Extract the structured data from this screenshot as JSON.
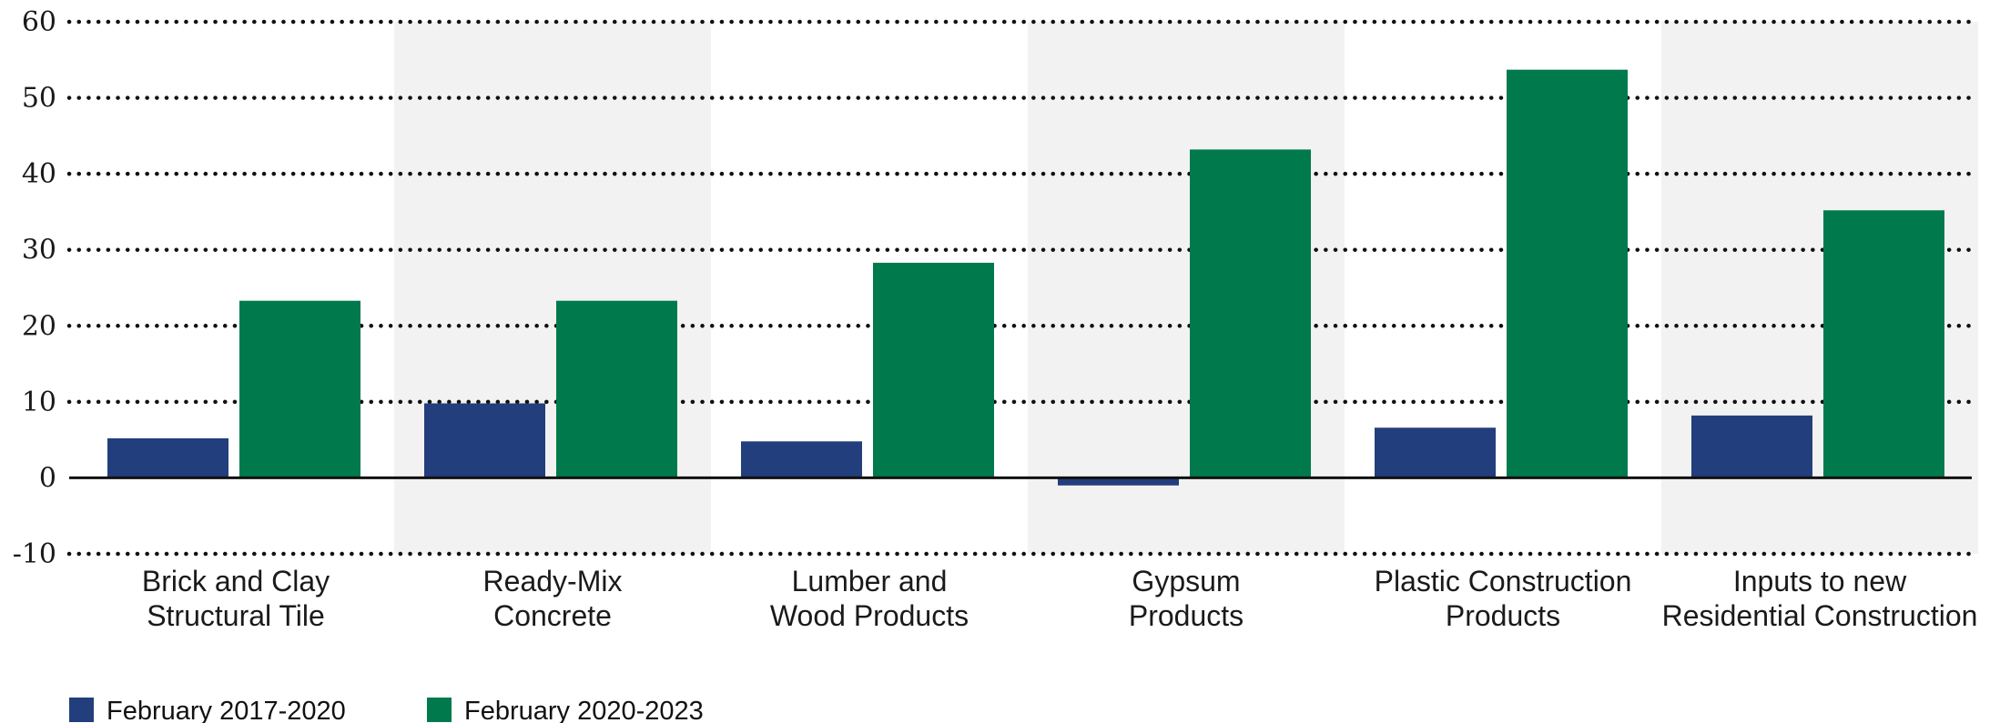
{
  "chart_data": {
    "type": "bar",
    "title": "",
    "xlabel": "",
    "ylabel": "",
    "ylim": [
      -10,
      60
    ],
    "yticks": [
      60,
      50,
      40,
      30,
      20,
      10,
      0,
      -10
    ],
    "grid": "dotted horizontal",
    "alternating_category_shading": true,
    "legend_position": "bottom-left",
    "categories": [
      [
        "Brick and Clay",
        "Structural Tile"
      ],
      [
        "Ready-Mix",
        "Concrete"
      ],
      [
        "Lumber and",
        "Wood Products"
      ],
      [
        "Gypsum",
        "Products"
      ],
      [
        "Plastic Construction",
        "Products"
      ],
      [
        "Inputs to new",
        "Residential Construction"
      ]
    ],
    "series": [
      {
        "name": "February 2017-2020",
        "color": "#233e7c",
        "values": [
          5.2,
          9.8,
          4.8,
          -1.0,
          6.6,
          8.2
        ]
      },
      {
        "name": "February 2020-2023",
        "color": "#007a4d",
        "values": [
          23.3,
          23.3,
          28.3,
          43.2,
          53.7,
          35.2
        ]
      }
    ]
  }
}
